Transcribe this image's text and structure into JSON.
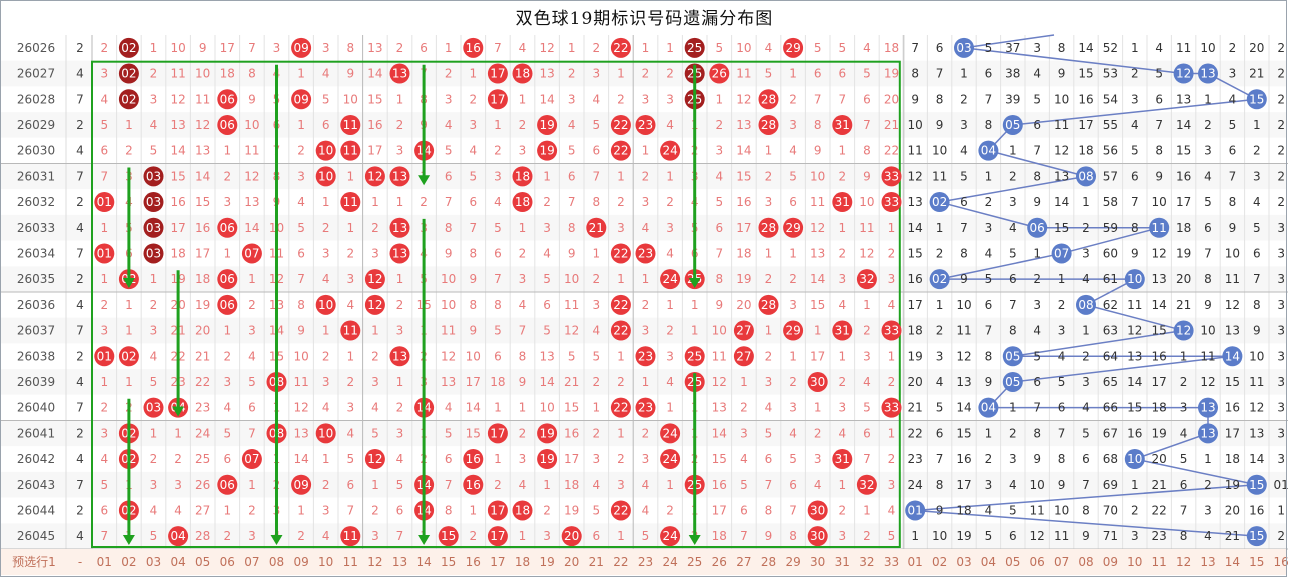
{
  "title": "双色球19期标识号码遗漏分布图",
  "footer_label": "预选行1",
  "footer_dash": "-",
  "red_headers": [
    "01",
    "02",
    "03",
    "04",
    "05",
    "06",
    "07",
    "08",
    "09",
    "10",
    "11",
    "12",
    "13",
    "14",
    "15",
    "16",
    "17",
    "18",
    "19",
    "20",
    "21",
    "22",
    "23",
    "24",
    "25",
    "26",
    "27",
    "28",
    "29",
    "30",
    "31",
    "32",
    "33"
  ],
  "blue_headers": [
    "01",
    "02",
    "03",
    "04",
    "05",
    "06",
    "07",
    "08",
    "09",
    "10",
    "11",
    "12",
    "13",
    "14",
    "15",
    "16"
  ],
  "colors": {
    "red_ball": "#e8393c",
    "dark_ball": "#a31f1f",
    "blue_ball": "#5b7cc9",
    "green_box": "#1fa11f",
    "miss_red": "#e87a7a",
    "miss_blue": "#333333",
    "blue_line": "#6b7fc4"
  },
  "chart_data": {
    "type": "table",
    "rows": [
      {
        "issue": "26026",
        "col2": "2",
        "red": [
          "2",
          "02",
          "1",
          "10",
          "9",
          "17",
          "7",
          "3",
          "09",
          "3",
          "8",
          "13",
          "2",
          "6",
          "1",
          "16",
          "7",
          "4",
          "12",
          "1",
          "2",
          "22",
          "1",
          "1",
          "25",
          "5",
          "10",
          "4",
          "29",
          "5",
          "5",
          "4",
          "18"
        ],
        "dark": [
          "02",
          "25"
        ],
        "blue": [
          "7",
          "6",
          "03",
          "5",
          "37",
          "3",
          "8",
          "14",
          "52",
          "1",
          "4",
          "11",
          "10",
          "2",
          "20",
          "2"
        ]
      },
      {
        "issue": "26027",
        "col2": "4",
        "red": [
          "3",
          "02",
          "2",
          "11",
          "10",
          "18",
          "8",
          "4",
          "1",
          "4",
          "9",
          "14",
          "13",
          "7",
          "2",
          "1",
          "17",
          "18",
          "13",
          "2",
          "3",
          "1",
          "2",
          "2",
          "25",
          "26",
          "11",
          "5",
          "1",
          "6",
          "6",
          "5",
          "19"
        ],
        "dark": [
          "02",
          "25"
        ],
        "blue": [
          "8",
          "7",
          "1",
          "6",
          "38",
          "4",
          "9",
          "15",
          "53",
          "2",
          "5",
          "12",
          "13",
          "3",
          "21",
          "2"
        ]
      },
      {
        "issue": "26028",
        "col2": "7",
        "red": [
          "4",
          "02",
          "3",
          "12",
          "11",
          "06",
          "9",
          "5",
          "09",
          "5",
          "10",
          "15",
          "1",
          "8",
          "3",
          "2",
          "17",
          "1",
          "14",
          "3",
          "4",
          "2",
          "3",
          "3",
          "25",
          "1",
          "12",
          "28",
          "2",
          "7",
          "7",
          "6",
          "20"
        ],
        "dark": [
          "02",
          "25"
        ],
        "blue": [
          "9",
          "8",
          "2",
          "7",
          "39",
          "5",
          "10",
          "16",
          "54",
          "3",
          "6",
          "13",
          "1",
          "4",
          "15",
          "2"
        ]
      },
      {
        "issue": "26029",
        "col2": "2",
        "red": [
          "5",
          "1",
          "4",
          "13",
          "12",
          "06",
          "10",
          "6",
          "1",
          "6",
          "11",
          "16",
          "2",
          "9",
          "4",
          "3",
          "1",
          "2",
          "19",
          "4",
          "5",
          "22",
          "23",
          "4",
          "1",
          "2",
          "13",
          "28",
          "3",
          "8",
          "31",
          "7",
          "21"
        ],
        "dark": [],
        "blue": [
          "10",
          "9",
          "3",
          "8",
          "05",
          "6",
          "11",
          "17",
          "55",
          "4",
          "7",
          "14",
          "2",
          "5",
          "1",
          "2"
        ]
      },
      {
        "issue": "26030",
        "col2": "4",
        "red": [
          "6",
          "2",
          "5",
          "14",
          "13",
          "1",
          "11",
          "7",
          "2",
          "10",
          "11",
          "17",
          "3",
          "14",
          "5",
          "4",
          "2",
          "3",
          "19",
          "5",
          "6",
          "22",
          "1",
          "24",
          "2",
          "3",
          "14",
          "1",
          "4",
          "9",
          "1",
          "8",
          "22"
        ],
        "dark": [],
        "blue": [
          "11",
          "10",
          "4",
          "04",
          "1",
          "7",
          "12",
          "18",
          "56",
          "5",
          "8",
          "15",
          "3",
          "6",
          "2",
          "2"
        ]
      },
      {
        "issue": "26031",
        "col2": "7",
        "red": [
          "7",
          "3",
          "03",
          "15",
          "14",
          "2",
          "12",
          "8",
          "3",
          "10",
          "1",
          "12",
          "13",
          "1",
          "6",
          "5",
          "3",
          "18",
          "1",
          "6",
          "7",
          "1",
          "2",
          "1",
          "3",
          "4",
          "15",
          "2",
          "5",
          "10",
          "2",
          "9",
          "33"
        ],
        "dark": [
          "03"
        ],
        "blue": [
          "12",
          "11",
          "5",
          "1",
          "2",
          "8",
          "13",
          "08",
          "57",
          "6",
          "9",
          "16",
          "4",
          "7",
          "3",
          "2"
        ]
      },
      {
        "issue": "26032",
        "col2": "2",
        "red": [
          "01",
          "4",
          "03",
          "16",
          "15",
          "3",
          "13",
          "9",
          "4",
          "1",
          "11",
          "1",
          "1",
          "2",
          "7",
          "6",
          "4",
          "18",
          "2",
          "7",
          "8",
          "2",
          "3",
          "2",
          "4",
          "5",
          "16",
          "3",
          "6",
          "11",
          "31",
          "10",
          "33"
        ],
        "dark": [
          "03"
        ],
        "blue": [
          "13",
          "02",
          "6",
          "2",
          "3",
          "9",
          "14",
          "1",
          "58",
          "7",
          "10",
          "17",
          "5",
          "8",
          "4",
          "2"
        ]
      },
      {
        "issue": "26033",
        "col2": "4",
        "red": [
          "1",
          "5",
          "03",
          "17",
          "16",
          "06",
          "14",
          "10",
          "5",
          "2",
          "1",
          "2",
          "13",
          "3",
          "8",
          "7",
          "5",
          "1",
          "3",
          "8",
          "21",
          "3",
          "4",
          "3",
          "5",
          "6",
          "17",
          "28",
          "29",
          "12",
          "1",
          "11",
          "1"
        ],
        "dark": [
          "03"
        ],
        "blue": [
          "14",
          "1",
          "7",
          "3",
          "4",
          "06",
          "15",
          "2",
          "59",
          "8",
          "11",
          "18",
          "6",
          "9",
          "5",
          "3"
        ]
      },
      {
        "issue": "26034",
        "col2": "7",
        "red": [
          "01",
          "6",
          "03",
          "18",
          "17",
          "1",
          "07",
          "11",
          "6",
          "3",
          "2",
          "3",
          "13",
          "4",
          "9",
          "8",
          "6",
          "2",
          "4",
          "9",
          "1",
          "22",
          "23",
          "4",
          "6",
          "7",
          "18",
          "1",
          "1",
          "13",
          "2",
          "12",
          "2"
        ],
        "dark": [
          "03"
        ],
        "blue": [
          "15",
          "2",
          "8",
          "4",
          "5",
          "1",
          "07",
          "3",
          "60",
          "9",
          "12",
          "19",
          "7",
          "10",
          "6",
          "3"
        ]
      },
      {
        "issue": "26035",
        "col2": "2",
        "red": [
          "1",
          "02",
          "1",
          "19",
          "18",
          "06",
          "1",
          "12",
          "7",
          "4",
          "3",
          "12",
          "1",
          "5",
          "10",
          "9",
          "7",
          "3",
          "5",
          "10",
          "2",
          "1",
          "1",
          "24",
          "25",
          "8",
          "19",
          "2",
          "2",
          "14",
          "3",
          "32",
          "3"
        ],
        "dark": [],
        "blue": [
          "16",
          "02",
          "9",
          "5",
          "6",
          "2",
          "1",
          "4",
          "61",
          "10",
          "13",
          "20",
          "8",
          "11",
          "7",
          "3"
        ]
      },
      {
        "issue": "26036",
        "col2": "4",
        "red": [
          "2",
          "1",
          "2",
          "20",
          "19",
          "06",
          "2",
          "13",
          "8",
          "10",
          "4",
          "12",
          "2",
          "15",
          "10",
          "8",
          "8",
          "4",
          "6",
          "11",
          "3",
          "22",
          "2",
          "1",
          "1",
          "9",
          "20",
          "28",
          "3",
          "15",
          "4",
          "1",
          "4"
        ],
        "dark": [],
        "blue": [
          "17",
          "1",
          "10",
          "6",
          "7",
          "3",
          "2",
          "08",
          "62",
          "11",
          "14",
          "21",
          "9",
          "12",
          "8",
          "3"
        ]
      },
      {
        "issue": "26037",
        "col2": "7",
        "red": [
          "3",
          "1",
          "3",
          "21",
          "20",
          "1",
          "3",
          "14",
          "9",
          "1",
          "11",
          "1",
          "3",
          "1",
          "11",
          "9",
          "5",
          "7",
          "5",
          "12",
          "4",
          "22",
          "3",
          "2",
          "1",
          "10",
          "27",
          "1",
          "29",
          "1",
          "31",
          "2",
          "33"
        ],
        "dark": [],
        "blue": [
          "18",
          "2",
          "11",
          "7",
          "8",
          "4",
          "3",
          "1",
          "63",
          "12",
          "15",
          "12",
          "10",
          "13",
          "9",
          "3"
        ]
      },
      {
        "issue": "26038",
        "col2": "2",
        "red": [
          "01",
          "02",
          "4",
          "22",
          "21",
          "2",
          "4",
          "15",
          "10",
          "2",
          "1",
          "2",
          "13",
          "2",
          "12",
          "10",
          "6",
          "8",
          "13",
          "5",
          "5",
          "1",
          "23",
          "3",
          "25",
          "11",
          "27",
          "2",
          "1",
          "17",
          "1",
          "3",
          "1"
        ],
        "dark": [],
        "blue": [
          "19",
          "3",
          "12",
          "8",
          "05",
          "5",
          "4",
          "2",
          "64",
          "13",
          "16",
          "1",
          "11",
          "14",
          "10",
          "3"
        ]
      },
      {
        "issue": "26039",
        "col2": "4",
        "red": [
          "1",
          "1",
          "5",
          "23",
          "22",
          "3",
          "5",
          "08",
          "11",
          "3",
          "2",
          "3",
          "1",
          "3",
          "13",
          "17",
          "18",
          "9",
          "14",
          "21",
          "2",
          "2",
          "1",
          "4",
          "25",
          "12",
          "1",
          "3",
          "2",
          "30",
          "2",
          "4",
          "2"
        ],
        "dark": [],
        "blue": [
          "20",
          "4",
          "13",
          "9",
          "05",
          "6",
          "5",
          "3",
          "65",
          "14",
          "17",
          "2",
          "12",
          "15",
          "11",
          "3"
        ]
      },
      {
        "issue": "26040",
        "col2": "7",
        "red": [
          "2",
          "2",
          "03",
          "04",
          "23",
          "4",
          "6",
          "1",
          "12",
          "4",
          "3",
          "4",
          "2",
          "14",
          "4",
          "14",
          "1",
          "1",
          "10",
          "15",
          "1",
          "22",
          "23",
          "1",
          "1",
          "13",
          "2",
          "4",
          "3",
          "1",
          "3",
          "5",
          "33"
        ],
        "dark": [],
        "blue": [
          "21",
          "5",
          "14",
          "04",
          "1",
          "7",
          "6",
          "4",
          "66",
          "15",
          "18",
          "3",
          "13",
          "16",
          "12",
          "3"
        ]
      },
      {
        "issue": "26041",
        "col2": "2",
        "red": [
          "3",
          "02",
          "1",
          "1",
          "24",
          "5",
          "7",
          "08",
          "13",
          "10",
          "4",
          "5",
          "3",
          "1",
          "5",
          "15",
          "17",
          "2",
          "19",
          "16",
          "2",
          "1",
          "2",
          "24",
          "1",
          "14",
          "3",
          "5",
          "4",
          "2",
          "4",
          "6",
          "1"
        ],
        "dark": [],
        "blue": [
          "22",
          "6",
          "15",
          "1",
          "2",
          "8",
          "7",
          "5",
          "67",
          "16",
          "19",
          "4",
          "13",
          "17",
          "13",
          "3"
        ]
      },
      {
        "issue": "26042",
        "col2": "4",
        "red": [
          "4",
          "02",
          "2",
          "2",
          "25",
          "6",
          "07",
          "1",
          "14",
          "1",
          "5",
          "12",
          "4",
          "2",
          "6",
          "16",
          "1",
          "3",
          "19",
          "17",
          "3",
          "2",
          "3",
          "24",
          "2",
          "15",
          "4",
          "6",
          "5",
          "3",
          "31",
          "7",
          "2"
        ],
        "dark": [],
        "blue": [
          "23",
          "7",
          "16",
          "2",
          "3",
          "9",
          "8",
          "6",
          "68",
          "10",
          "20",
          "5",
          "1",
          "18",
          "14",
          "3"
        ]
      },
      {
        "issue": "26043",
        "col2": "7",
        "red": [
          "5",
          "1",
          "3",
          "3",
          "26",
          "06",
          "1",
          "2",
          "09",
          "2",
          "6",
          "1",
          "5",
          "14",
          "7",
          "16",
          "2",
          "4",
          "1",
          "18",
          "4",
          "3",
          "4",
          "1",
          "25",
          "16",
          "5",
          "7",
          "6",
          "4",
          "1",
          "32",
          "3"
        ],
        "dark": [],
        "blue": [
          "24",
          "8",
          "17",
          "3",
          "4",
          "10",
          "9",
          "7",
          "69",
          "1",
          "21",
          "6",
          "2",
          "19",
          "15",
          "01"
        ]
      },
      {
        "issue": "26044",
        "col2": "2",
        "red": [
          "6",
          "02",
          "4",
          "4",
          "27",
          "1",
          "2",
          "3",
          "1",
          "3",
          "7",
          "2",
          "6",
          "14",
          "8",
          "1",
          "17",
          "18",
          "2",
          "19",
          "5",
          "22",
          "4",
          "2",
          "1",
          "17",
          "6",
          "8",
          "7",
          "30",
          "2",
          "1",
          "4"
        ],
        "dark": [],
        "blue": [
          "01",
          "9",
          "18",
          "4",
          "5",
          "11",
          "10",
          "8",
          "70",
          "2",
          "22",
          "7",
          "3",
          "20",
          "16",
          "1"
        ]
      },
      {
        "issue": "26045",
        "col2": "4",
        "red": [
          "7",
          "1",
          "5",
          "04",
          "28",
          "2",
          "3",
          "4",
          "2",
          "4",
          "11",
          "3",
          "7",
          "1",
          "15",
          "2",
          "17",
          "1",
          "3",
          "20",
          "6",
          "1",
          "5",
          "24",
          "2",
          "18",
          "7",
          "9",
          "8",
          "30",
          "3",
          "2",
          "5"
        ],
        "dark": [],
        "blue": [
          "1",
          "10",
          "19",
          "5",
          "6",
          "12",
          "11",
          "9",
          "71",
          "3",
          "23",
          "8",
          "4",
          "21",
          "15",
          "2"
        ]
      }
    ]
  }
}
